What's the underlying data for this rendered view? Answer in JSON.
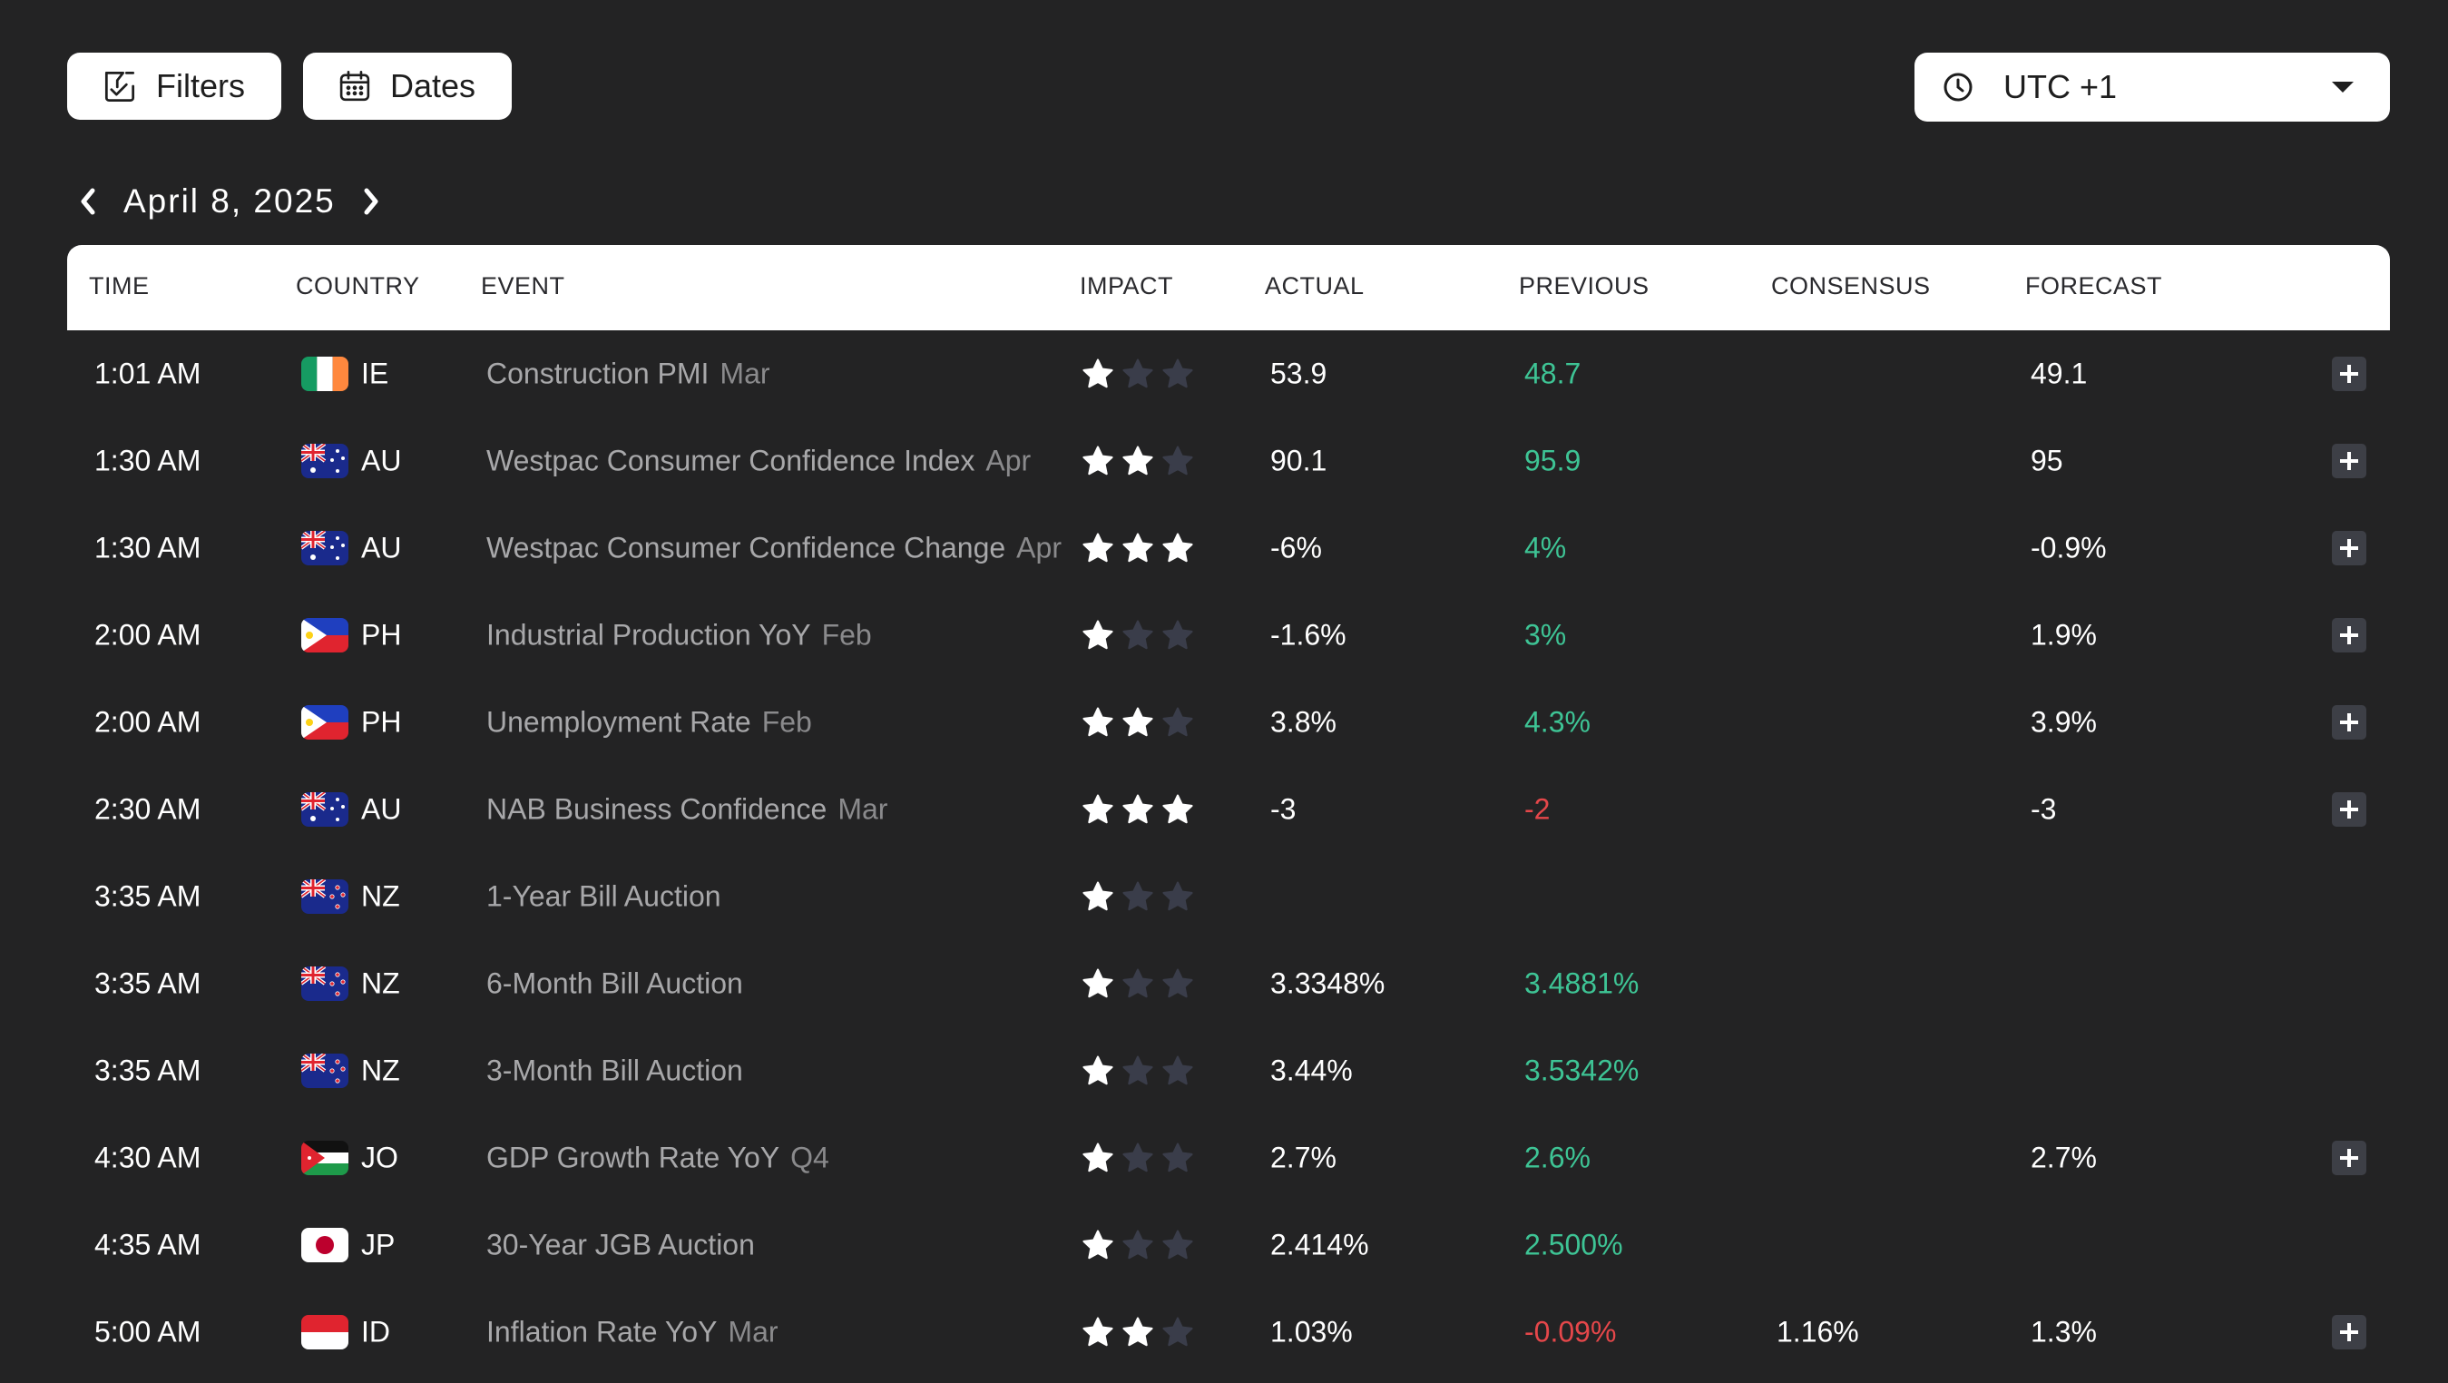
{
  "toolbar": {
    "filters_label": "Filters",
    "dates_label": "Dates",
    "timezone": "UTC +1"
  },
  "date_nav": {
    "date": "April 8, 2025"
  },
  "columns": {
    "time": "TIME",
    "country": "COUNTRY",
    "event": "EVENT",
    "impact": "IMPACT",
    "actual": "ACTUAL",
    "previous": "PREVIOUS",
    "consensus": "CONSENSUS",
    "forecast": "FORECAST"
  },
  "colors": {
    "background": "#232324",
    "previous_up": "#3ec495",
    "previous_down": "#e5474a",
    "star_on": "#ffffff",
    "star_off": "#3a3d4a"
  },
  "events": [
    {
      "time": "1:01 AM",
      "flag": "ie-flag",
      "code": "IE",
      "event": "Construction PMI",
      "period": "Mar",
      "impact": 1,
      "actual": "53.9",
      "previous": "48.7",
      "previous_dir": "up",
      "consensus": "",
      "forecast": "49.1",
      "expandable": true
    },
    {
      "time": "1:30 AM",
      "flag": "au-flag",
      "code": "AU",
      "event": "Westpac Consumer Confidence Index",
      "period": "Apr",
      "impact": 2,
      "actual": "90.1",
      "previous": "95.9",
      "previous_dir": "up",
      "consensus": "",
      "forecast": "95",
      "expandable": true
    },
    {
      "time": "1:30 AM",
      "flag": "au-flag",
      "code": "AU",
      "event": "Westpac Consumer Confidence Change",
      "period": "Apr",
      "impact": 3,
      "actual": "-6%",
      "previous": "4%",
      "previous_dir": "up",
      "consensus": "",
      "forecast": "-0.9%",
      "expandable": true
    },
    {
      "time": "2:00 AM",
      "flag": "ph-flag",
      "code": "PH",
      "event": "Industrial Production YoY",
      "period": "Feb",
      "impact": 1,
      "actual": "-1.6%",
      "previous": "3%",
      "previous_dir": "up",
      "consensus": "",
      "forecast": "1.9%",
      "expandable": true
    },
    {
      "time": "2:00 AM",
      "flag": "ph-flag",
      "code": "PH",
      "event": "Unemployment Rate",
      "period": "Feb",
      "impact": 2,
      "actual": "3.8%",
      "previous": "4.3%",
      "previous_dir": "up",
      "consensus": "",
      "forecast": "3.9%",
      "expandable": true
    },
    {
      "time": "2:30 AM",
      "flag": "au-flag",
      "code": "AU",
      "event": "NAB Business Confidence",
      "period": "Mar",
      "impact": 3,
      "actual": "-3",
      "previous": "-2",
      "previous_dir": "down",
      "consensus": "",
      "forecast": "-3",
      "expandable": true
    },
    {
      "time": "3:35 AM",
      "flag": "nz-flag",
      "code": "NZ",
      "event": "1-Year Bill Auction",
      "period": "",
      "impact": 1,
      "actual": "",
      "previous": "",
      "previous_dir": "up",
      "consensus": "",
      "forecast": "",
      "expandable": false
    },
    {
      "time": "3:35 AM",
      "flag": "nz-flag",
      "code": "NZ",
      "event": "6-Month Bill Auction",
      "period": "",
      "impact": 1,
      "actual": "3.3348%",
      "previous": "3.4881%",
      "previous_dir": "up",
      "consensus": "",
      "forecast": "",
      "expandable": false
    },
    {
      "time": "3:35 AM",
      "flag": "nz-flag",
      "code": "NZ",
      "event": "3-Month Bill Auction",
      "period": "",
      "impact": 1,
      "actual": "3.44%",
      "previous": "3.5342%",
      "previous_dir": "up",
      "consensus": "",
      "forecast": "",
      "expandable": false
    },
    {
      "time": "4:30 AM",
      "flag": "jo-flag",
      "code": "JO",
      "event": "GDP Growth Rate YoY",
      "period": "Q4",
      "impact": 1,
      "actual": "2.7%",
      "previous": "2.6%",
      "previous_dir": "up",
      "consensus": "",
      "forecast": "2.7%",
      "expandable": true
    },
    {
      "time": "4:35 AM",
      "flag": "jp-flag",
      "code": "JP",
      "event": "30-Year JGB Auction",
      "period": "",
      "impact": 1,
      "actual": "2.414%",
      "previous": "2.500%",
      "previous_dir": "up",
      "consensus": "",
      "forecast": "",
      "expandable": false
    },
    {
      "time": "5:00 AM",
      "flag": "id-flag",
      "code": "ID",
      "event": "Inflation Rate YoY",
      "period": "Mar",
      "impact": 2,
      "actual": "1.03%",
      "previous": "-0.09%",
      "previous_dir": "down",
      "consensus": "1.16%",
      "forecast": "1.3%",
      "expandable": true
    }
  ]
}
